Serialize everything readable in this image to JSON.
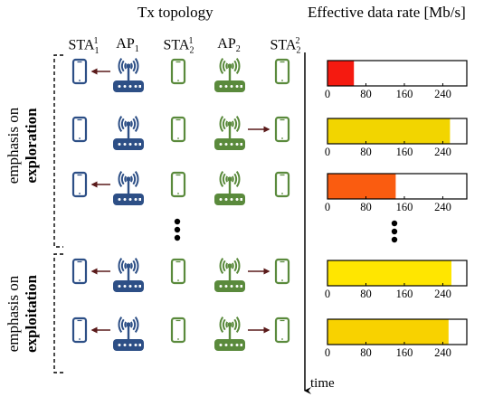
{
  "headers": {
    "topology": "Tx topology",
    "rate": "Effective data rate [Mb/s]"
  },
  "columns": [
    {
      "base": "STA",
      "sub": "1",
      "sup": "1"
    },
    {
      "base": "AP",
      "sub": "1",
      "sup": ""
    },
    {
      "base": "STA",
      "sub": "2",
      "sup": "1"
    },
    {
      "base": "AP",
      "sub": "2",
      "sup": ""
    },
    {
      "base": "STA",
      "sub": "2",
      "sup": "2"
    }
  ],
  "phases": [
    {
      "line1": "emphasis on",
      "line2": "exploration"
    },
    {
      "line1": "emphasis on",
      "line2": "exploitation"
    }
  ],
  "time_label": "time",
  "colors": {
    "ap1": "#2d4f86",
    "ap2": "#5a8a3c",
    "arrow": "#5a1a1a"
  },
  "chart_data": {
    "type": "bar",
    "xlabel": "Effective data rate [Mb/s]",
    "xlim": [
      0,
      290
    ],
    "ticks": [
      0,
      80,
      160,
      240
    ],
    "rows": [
      {
        "value": 55,
        "color": "#f51a10",
        "ap1_tx": true,
        "ap2_tx": false
      },
      {
        "value": 255,
        "color": "#f2d500",
        "ap1_tx": false,
        "ap2_tx": true
      },
      {
        "value": 142,
        "color": "#fa5c10",
        "ap1_tx": true,
        "ap2_tx": false
      },
      {
        "value": 258,
        "color": "#ffe600",
        "ap1_tx": true,
        "ap2_tx": true
      },
      {
        "value": 252,
        "color": "#f8d200",
        "ap1_tx": true,
        "ap2_tx": true
      }
    ]
  }
}
